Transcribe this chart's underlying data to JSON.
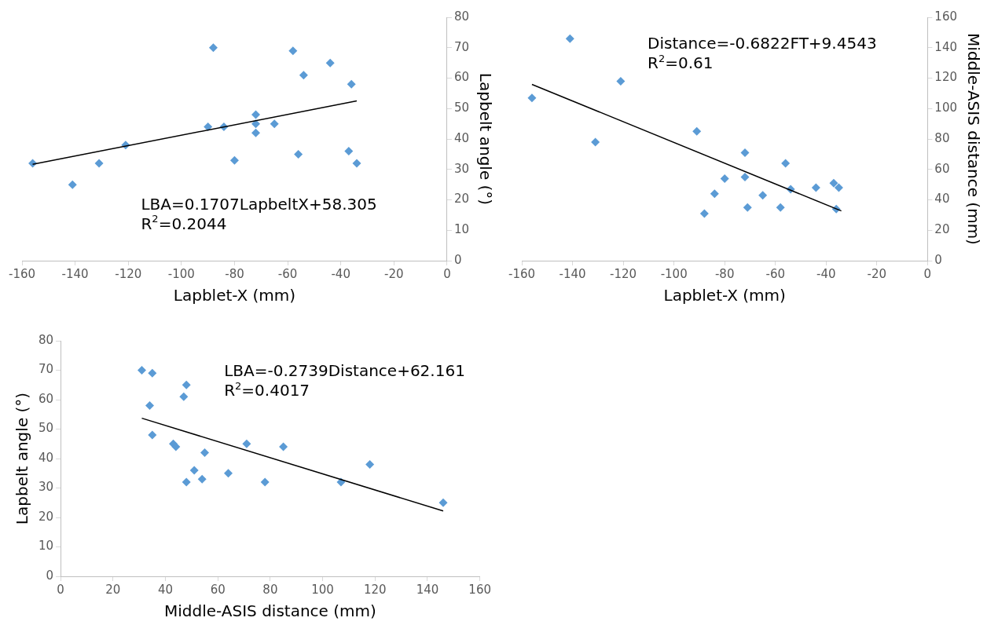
{
  "chart_data": [
    {
      "type": "scatter",
      "xlabel": "Lapblet-X (mm)",
      "y2label": "Lapbelt angle (°)",
      "xlim": [
        -160,
        0
      ],
      "xticks": [
        -160,
        -140,
        -120,
        -100,
        -80,
        -60,
        -40,
        -20,
        0
      ],
      "y2lim": [
        0,
        80
      ],
      "y2ticks": [
        0,
        10,
        20,
        30,
        40,
        50,
        60,
        70,
        80
      ],
      "grid": false,
      "legend": false,
      "marker": "diamond",
      "annotations": [
        "LBA=0.1707LapbeltX+58.305",
        "R$^{2}$=0.2044"
      ],
      "series": [
        {
          "type": "scatter",
          "axis": "y2",
          "color": "#5b9bd5",
          "x": [
            -156,
            -141,
            -131,
            -121,
            -88,
            -90,
            -84,
            -80,
            -72,
            -72,
            -72,
            -65,
            -58,
            -54,
            -56,
            -44,
            -36,
            -37,
            -34
          ],
          "values": [
            32,
            25,
            32,
            38,
            70,
            44,
            44,
            33,
            48,
            45,
            42,
            45,
            69,
            61,
            35,
            65,
            58,
            36,
            32
          ]
        },
        {
          "type": "line",
          "axis": "y2",
          "color": "#000000",
          "marker": "none",
          "x": [
            -156,
            -34
          ],
          "values": [
            31.7,
            52.5
          ]
        }
      ]
    },
    {
      "type": "scatter",
      "xlabel": "Lapblet-X (mm)",
      "y2label": "Middle-ASIS distance (mm)",
      "xlim": [
        -160,
        0
      ],
      "xticks": [
        -160,
        -140,
        -120,
        -100,
        -80,
        -60,
        -40,
        -20,
        0
      ],
      "y2lim": [
        0,
        160
      ],
      "y2ticks": [
        0,
        20,
        40,
        60,
        80,
        100,
        120,
        140,
        160
      ],
      "grid": false,
      "legend": false,
      "marker": "diamond",
      "annotations": [
        "Distance=-0.6822FT+9.4543",
        "R$^{2}$=0.61"
      ],
      "series": [
        {
          "type": "scatter",
          "axis": "y2",
          "color": "#5b9bd5",
          "x": [
            -156,
            -141,
            -131,
            -121,
            -91,
            -88,
            -84,
            -80,
            -72,
            -72,
            -71,
            -65,
            -58,
            -56,
            -54,
            -44,
            -37,
            -36,
            -35
          ],
          "values": [
            107,
            146,
            78,
            118,
            85,
            31,
            44,
            54,
            71,
            55,
            35,
            43,
            35,
            64,
            47,
            48,
            51,
            34,
            48
          ]
        },
        {
          "type": "line",
          "axis": "y2",
          "color": "#000000",
          "marker": "none",
          "x": [
            -156,
            -34
          ],
          "values": [
            115.9,
            32.7
          ]
        }
      ]
    },
    {
      "type": "scatter",
      "xlabel": "Middle-ASIS distance (mm)",
      "ylabel": "Lapbelt angle (°)",
      "xlim": [
        0,
        160
      ],
      "xticks": [
        0,
        20,
        40,
        60,
        80,
        100,
        120,
        140,
        160
      ],
      "ylim": [
        0,
        80
      ],
      "yticks": [
        0,
        10,
        20,
        30,
        40,
        50,
        60,
        70,
        80
      ],
      "grid": false,
      "legend": false,
      "marker": "diamond",
      "annotations": [
        "LBA=-0.2739Distance+62.161",
        "R$^{2}$=0.4017"
      ],
      "series": [
        {
          "type": "scatter",
          "color": "#5b9bd5",
          "x": [
            31,
            35,
            34,
            35,
            48,
            47,
            43,
            44,
            48,
            55,
            51,
            54,
            64,
            71,
            78,
            85,
            107,
            118,
            146
          ],
          "values": [
            70,
            69,
            58,
            48,
            65,
            61,
            45,
            44,
            32,
            42,
            36,
            33,
            35,
            45,
            32,
            44,
            32,
            38,
            25
          ]
        },
        {
          "type": "line",
          "color": "#000000",
          "marker": "none",
          "x": [
            31,
            146
          ],
          "values": [
            53.7,
            22.2
          ]
        }
      ]
    }
  ]
}
